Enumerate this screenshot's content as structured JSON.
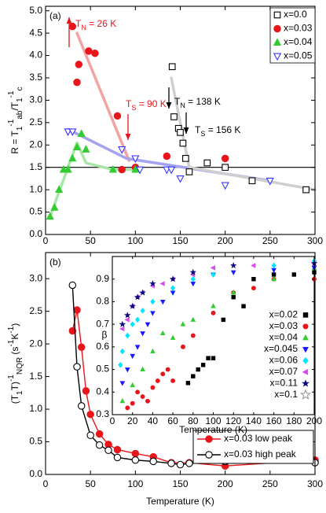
{
  "chart_data": [
    {
      "type": "scatter",
      "label": "(a)",
      "y_label": [
        {
          "text": "R = T"
        },
        {
          "text": "1",
          "sub": true
        },
        {
          "text": "-1",
          "sup": true
        },
        {
          "text": "ab",
          "sub": true
        },
        {
          "text": "/T"
        },
        {
          "text": "1",
          "sub": true
        },
        {
          "text": "-1",
          "sup": true
        },
        {
          "text": "c",
          "sub": true
        }
      ],
      "xlim": [
        0,
        300
      ],
      "xticks": [
        0,
        50,
        100,
        150,
        200,
        250,
        300
      ],
      "ylim": [
        0,
        5.1
      ],
      "yticks": [
        {
          "value": 0,
          "label": "0.0"
        },
        0.5,
        {
          "value": 1,
          "label": "1.0"
        },
        1.5,
        {
          "value": 2,
          "label": "2.0"
        },
        2.5,
        {
          "value": 3,
          "label": "3.0"
        },
        3.5,
        {
          "value": 4,
          "label": "4.0"
        },
        4.5,
        {
          "value": 5,
          "label": "5.0"
        }
      ],
      "hline": 1.5,
      "legend": "upper right",
      "guides": [
        {
          "color": "#f4a3a3",
          "x": [
            35,
            93
          ],
          "values": [
            4.5,
            1.65
          ]
        },
        {
          "color": "#a3a3ef",
          "x": [
            25,
            90,
            250
          ],
          "values": [
            2.35,
            1.7,
            1.2
          ]
        },
        {
          "color": "#a8e6a8",
          "x": [
            5,
            35,
            45,
            75,
            100
          ],
          "values": [
            0.4,
            2.05,
            1.6,
            1.45,
            1.45
          ]
        },
        {
          "color": "#cfcfcf",
          "x": [
            140,
            160,
            300
          ],
          "values": [
            3.5,
            1.5,
            1.0
          ]
        }
      ],
      "series": [
        {
          "name": "x=0.0",
          "color": "#000000",
          "marker": "square",
          "filled": false,
          "x": [
            141,
            143,
            148,
            150,
            153,
            156,
            160,
            180,
            200,
            230,
            290
          ],
          "values": [
            3.75,
            2.63,
            2.37,
            2.28,
            2.04,
            1.7,
            1.4,
            1.6,
            1.5,
            1.2,
            1.0
          ]
        },
        {
          "name": "x=0.03",
          "color": "#e8161b",
          "marker": "circle",
          "filled": true,
          "x": [
            30,
            35,
            37,
            48,
            55,
            80,
            85,
            100,
            135,
            200
          ],
          "values": [
            4.65,
            3.4,
            3.8,
            4.1,
            4.05,
            2.65,
            1.45,
            1.5,
            1.75,
            1.7
          ]
        },
        {
          "name": "x=0.04",
          "color": "#33cc33",
          "marker": "triangle-up",
          "filled": true,
          "x": [
            5,
            10,
            15,
            20,
            25,
            30,
            35,
            40,
            45,
            75,
            100
          ],
          "values": [
            0.4,
            0.6,
            1.0,
            1.45,
            1.45,
            1.7,
            1.95,
            2.25,
            1.9,
            1.45,
            1.45
          ]
        },
        {
          "name": "x=0.05",
          "color": "#3333ff",
          "marker": "triangle-down",
          "filled": false,
          "x": [
            25,
            30,
            85,
            100,
            105,
            135,
            140,
            150,
            200,
            250
          ],
          "values": [
            2.3,
            2.3,
            1.9,
            1.7,
            1.45,
            1.45,
            1.45,
            1.25,
            1.1,
            1.2
          ]
        }
      ],
      "annotations": [
        {
          "color": "#e8161b",
          "parts": [
            {
              "text": "T"
            },
            {
              "text": "N",
              "sub": true
            },
            {
              "text": " = 26 K"
            }
          ]
        },
        {
          "color": "#e8161b",
          "parts": [
            {
              "text": "T"
            },
            {
              "text": "S",
              "sub": true
            },
            {
              "text": " = 90 K"
            }
          ]
        },
        {
          "color": "#000000",
          "parts": [
            {
              "text": "T"
            },
            {
              "text": "N",
              "sub": true
            },
            {
              "text": " = 138 K"
            }
          ]
        },
        {
          "color": "#000000",
          "parts": [
            {
              "text": "T"
            },
            {
              "text": "S",
              "sub": true
            },
            {
              "text": " = 156 K"
            }
          ]
        }
      ]
    },
    {
      "type": "line",
      "label": "(b)",
      "x_label": "Temperature (K)",
      "y_label": [
        {
          "text": "(T"
        },
        {
          "text": "1",
          "sub": true
        },
        {
          "text": "T)"
        },
        {
          "text": "-1",
          "sup": true
        },
        {
          "text": "NQR",
          "sub": true
        },
        {
          "text": " (s"
        },
        {
          "text": "-1",
          "sup": true
        },
        {
          "text": "K"
        },
        {
          "text": "-1",
          "sup": true
        },
        {
          "text": ")"
        }
      ],
      "xlim": [
        0,
        300
      ],
      "xticks": [
        0,
        50,
        100,
        150,
        200,
        250,
        300
      ],
      "ylim": [
        0,
        3.4
      ],
      "yticks": [
        {
          "value": 0,
          "label": "0.0"
        },
        0.5,
        {
          "value": 1,
          "label": "1.0"
        },
        1.5,
        {
          "value": 2,
          "label": "2.0"
        },
        2.5,
        {
          "value": 3,
          "label": "3.0"
        }
      ],
      "legend": "lower right",
      "series": [
        {
          "name": "x=0.03 low peak",
          "color": "#e8161b",
          "marker": "circle",
          "filled": true,
          "x": [
            30,
            35,
            40,
            45,
            50,
            60,
            70,
            80,
            100,
            120,
            140,
            160,
            200,
            300
          ],
          "values": [
            2.2,
            2.52,
            1.95,
            1.28,
            0.92,
            0.62,
            0.46,
            0.38,
            0.32,
            0.27,
            0.18,
            0.18,
            0.13,
            0.22
          ]
        },
        {
          "name": "x=0.03 high peak",
          "color": "#000000",
          "marker": "circle",
          "filled": false,
          "x": [
            30,
            35,
            40,
            50,
            60,
            70,
            80,
            100,
            120,
            140,
            150,
            160,
            200,
            300
          ],
          "values": [
            2.9,
            1.65,
            1.05,
            0.6,
            0.45,
            0.37,
            0.26,
            0.22,
            0.2,
            0.17,
            0.15,
            0.17,
            0.2,
            0.18
          ]
        }
      ]
    },
    {
      "type": "scatter",
      "x_label": "Temperature (K)",
      "y_label": [
        {
          "text": "β"
        }
      ],
      "xlim": [
        0,
        200
      ],
      "xticks": [
        0,
        20,
        40,
        60,
        80,
        100,
        120,
        140,
        160,
        180,
        200
      ],
      "ylim": [
        0.3,
        1.0
      ],
      "yticks": [
        0.3,
        0.4,
        0.5,
        0.6,
        0.7,
        0.8,
        0.9
      ],
      "legend": "center right",
      "series": [
        {
          "name": "x=0.02",
          "color": "#000000",
          "marker": "square",
          "filled": true,
          "x": [
            75,
            80,
            85,
            90,
            95,
            100,
            110,
            120,
            130,
            140,
            160,
            180,
            200
          ],
          "values": [
            0.44,
            0.47,
            0.5,
            0.52,
            0.55,
            0.55,
            0.72,
            0.82,
            0.78,
            0.9,
            0.92,
            0.92,
            0.93
          ]
        },
        {
          "name": "x=0.03",
          "color": "#e8161b",
          "marker": "circle",
          "filled": true,
          "x": [
            15,
            20,
            25,
            30,
            35,
            40,
            45,
            50,
            55,
            60,
            70,
            80,
            100,
            120,
            140,
            160,
            200
          ],
          "values": [
            0.33,
            0.35,
            0.4,
            0.38,
            0.36,
            0.42,
            0.45,
            0.48,
            0.5,
            0.45,
            0.6,
            0.65,
            0.75,
            0.84,
            0.86,
            0.9,
            0.9
          ]
        },
        {
          "name": "x=0.04",
          "color": "#33cc33",
          "marker": "triangle-up",
          "filled": true,
          "x": [
            10,
            20,
            30,
            40,
            50,
            60,
            70,
            80,
            100,
            120,
            160,
            200
          ],
          "values": [
            0.36,
            0.43,
            0.5,
            0.58,
            0.66,
            0.64,
            0.7,
            0.72,
            0.78,
            0.84,
            0.9,
            0.95
          ]
        },
        {
          "name": "x=0.045",
          "color": "#1a1aff",
          "marker": "triangle-down",
          "filled": true,
          "x": [
            10,
            15,
            20,
            25,
            30,
            35,
            40,
            50,
            60,
            80,
            100,
            120,
            160,
            200
          ],
          "values": [
            0.44,
            0.5,
            0.56,
            0.6,
            0.66,
            0.7,
            0.75,
            0.8,
            0.84,
            0.88,
            0.92,
            0.93,
            0.94,
            0.95
          ]
        },
        {
          "name": "x=0.06",
          "color": "#00e5ff",
          "marker": "diamond",
          "filled": true,
          "x": [
            8,
            10,
            15,
            20,
            25,
            30,
            40,
            60,
            80,
            100,
            160,
            200
          ],
          "values": [
            0.52,
            0.58,
            0.65,
            0.7,
            0.72,
            0.76,
            0.8,
            0.86,
            0.9,
            0.92,
            0.96,
            0.98
          ]
        },
        {
          "name": "x=0.07",
          "color": "#d94bf0",
          "marker": "triangle-left",
          "filled": true,
          "x": [
            10,
            15,
            20,
            25,
            30,
            40,
            50,
            60,
            80,
            100,
            140,
            200
          ],
          "values": [
            0.68,
            0.72,
            0.78,
            0.82,
            0.84,
            0.87,
            0.88,
            0.9,
            0.92,
            0.95,
            0.96,
            0.97
          ]
        },
        {
          "name": "x=0.11",
          "color": "#0a0a80",
          "marker": "star",
          "filled": true,
          "x": [
            10,
            15,
            20,
            25,
            30,
            40,
            60,
            80,
            120,
            200
          ],
          "values": [
            0.7,
            0.74,
            0.78,
            0.82,
            0.84,
            0.88,
            0.9,
            0.93,
            0.96,
            0.97
          ]
        },
        {
          "name": "x=0.1",
          "color": "#999999",
          "marker": "star",
          "filled": false,
          "x": [],
          "values": []
        }
      ]
    }
  ]
}
